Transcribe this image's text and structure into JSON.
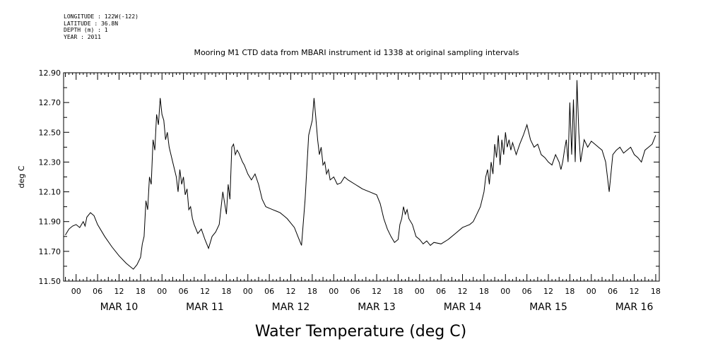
{
  "header": {
    "meta_lines": [
      "LONGITUDE : 122W(-122)",
      "LATITUDE : 36.8N",
      "DEPTH (m) : 1",
      "YEAR : 2011"
    ]
  },
  "chart_data": {
    "type": "line",
    "title": "Mooring M1 CTD data from MBARI instrument id 1338 at original sampling intervals",
    "xlabel": "Water Temperature (deg C)",
    "ylabel": "deg C",
    "ylim": [
      11.5,
      12.9
    ],
    "yticks": [
      "11.50",
      "11.70",
      "11.90",
      "12.10",
      "12.30",
      "12.50",
      "12.70",
      "12.90"
    ],
    "x_unit": "hours since MAR 10 00:00",
    "xlim": [
      -3.5,
      163
    ],
    "hour_tick_labels": [
      "00",
      "06",
      "12",
      "18"
    ],
    "days": [
      "MAR 10",
      "MAR 11",
      "MAR 12",
      "MAR 13",
      "MAR 14",
      "MAR 15",
      "MAR 16"
    ],
    "grid": false,
    "line_color": "#000000",
    "series": [
      {
        "x": [
          -3,
          -2,
          -1,
          0,
          1,
          2,
          2.5,
          3,
          4,
          5,
          6,
          8,
          10,
          12,
          14,
          16,
          17,
          18,
          18.5,
          19,
          19.5,
          20,
          20.5,
          21,
          21.5,
          22,
          22.5,
          23,
          23.5,
          24,
          24.5,
          25,
          25.5,
          26,
          27,
          28,
          28.5,
          29,
          29.5,
          30,
          30.5,
          31,
          31.5,
          32,
          32.5,
          33,
          34,
          35,
          36,
          37,
          38,
          39,
          40,
          41,
          42,
          42.5,
          43,
          43.5,
          44,
          44.5,
          45,
          45.5,
          46,
          46.5,
          47,
          48,
          49,
          50,
          51,
          52,
          53,
          54,
          55,
          56,
          57,
          58,
          59,
          60,
          61,
          62,
          63,
          64,
          65,
          66,
          66.5,
          67,
          67.5,
          68,
          68.5,
          69,
          69.5,
          70,
          70.5,
          71,
          72,
          73,
          74,
          75,
          76,
          78,
          80,
          82,
          84,
          85,
          86,
          87,
          88,
          89,
          90,
          90.5,
          91,
          91.5,
          92,
          92.5,
          93,
          94,
          95,
          96,
          97,
          98,
          99,
          100,
          102,
          104,
          106,
          108,
          110,
          111,
          112,
          113,
          114,
          114.5,
          115,
          115.5,
          116,
          116.5,
          117,
          117.5,
          118,
          118.5,
          119,
          119.5,
          120,
          120.5,
          121,
          121.5,
          122,
          123,
          124,
          125,
          126,
          127,
          128,
          129,
          130,
          131,
          132,
          133,
          134,
          135,
          135.5,
          136,
          136.5,
          137,
          137.5,
          138,
          138.5,
          139,
          139.5,
          140,
          140.5,
          141,
          142,
          143,
          144,
          145,
          146,
          147,
          148,
          149,
          150,
          151,
          152,
          153,
          154,
          155,
          156,
          157,
          158,
          159,
          160,
          161,
          162
        ],
        "values": [
          11.81,
          11.85,
          11.87,
          11.88,
          11.86,
          11.9,
          11.87,
          11.93,
          11.96,
          11.94,
          11.88,
          11.8,
          11.73,
          11.67,
          11.62,
          11.58,
          11.61,
          11.66,
          11.75,
          11.8,
          12.04,
          11.98,
          12.2,
          12.15,
          12.45,
          12.38,
          12.62,
          12.55,
          12.73,
          12.62,
          12.58,
          12.45,
          12.5,
          12.4,
          12.3,
          12.2,
          12.1,
          12.25,
          12.15,
          12.2,
          12.08,
          12.12,
          11.98,
          12.0,
          11.92,
          11.88,
          11.82,
          11.85,
          11.78,
          11.72,
          11.8,
          11.83,
          11.88,
          12.1,
          11.95,
          12.15,
          12.05,
          12.4,
          12.42,
          12.35,
          12.38,
          12.36,
          12.33,
          12.3,
          12.28,
          12.22,
          12.18,
          12.22,
          12.15,
          12.05,
          12.0,
          11.99,
          11.98,
          11.97,
          11.96,
          11.94,
          11.92,
          11.89,
          11.86,
          11.8,
          11.74,
          12.05,
          12.48,
          12.58,
          12.73,
          12.6,
          12.45,
          12.35,
          12.4,
          12.28,
          12.3,
          12.22,
          12.25,
          12.18,
          12.2,
          12.15,
          12.16,
          12.2,
          12.18,
          12.15,
          12.12,
          12.1,
          12.08,
          12.02,
          11.92,
          11.85,
          11.8,
          11.76,
          11.78,
          11.88,
          11.92,
          12.0,
          11.95,
          11.98,
          11.92,
          11.88,
          11.8,
          11.78,
          11.75,
          11.77,
          11.74,
          11.76,
          11.75,
          11.78,
          11.82,
          11.86,
          11.88,
          11.9,
          11.95,
          12.0,
          12.1,
          12.2,
          12.25,
          12.15,
          12.3,
          12.22,
          12.42,
          12.33,
          12.48,
          12.28,
          12.45,
          12.35,
          12.5,
          12.4,
          12.45,
          12.38,
          12.43,
          12.35,
          12.42,
          12.48,
          12.55,
          12.45,
          12.4,
          12.42,
          12.35,
          12.33,
          12.3,
          12.28,
          12.35,
          12.3,
          12.25,
          12.3,
          12.38,
          12.45,
          12.3,
          12.7,
          12.35,
          12.72,
          12.3,
          12.85,
          12.5,
          12.3,
          12.45,
          12.4,
          12.44,
          12.42,
          12.4,
          12.38,
          12.3,
          12.1,
          12.35,
          12.38,
          12.4,
          12.36,
          12.38,
          12.4,
          12.35,
          12.33,
          12.3,
          12.38,
          12.4,
          12.42,
          12.48
        ]
      }
    ]
  }
}
